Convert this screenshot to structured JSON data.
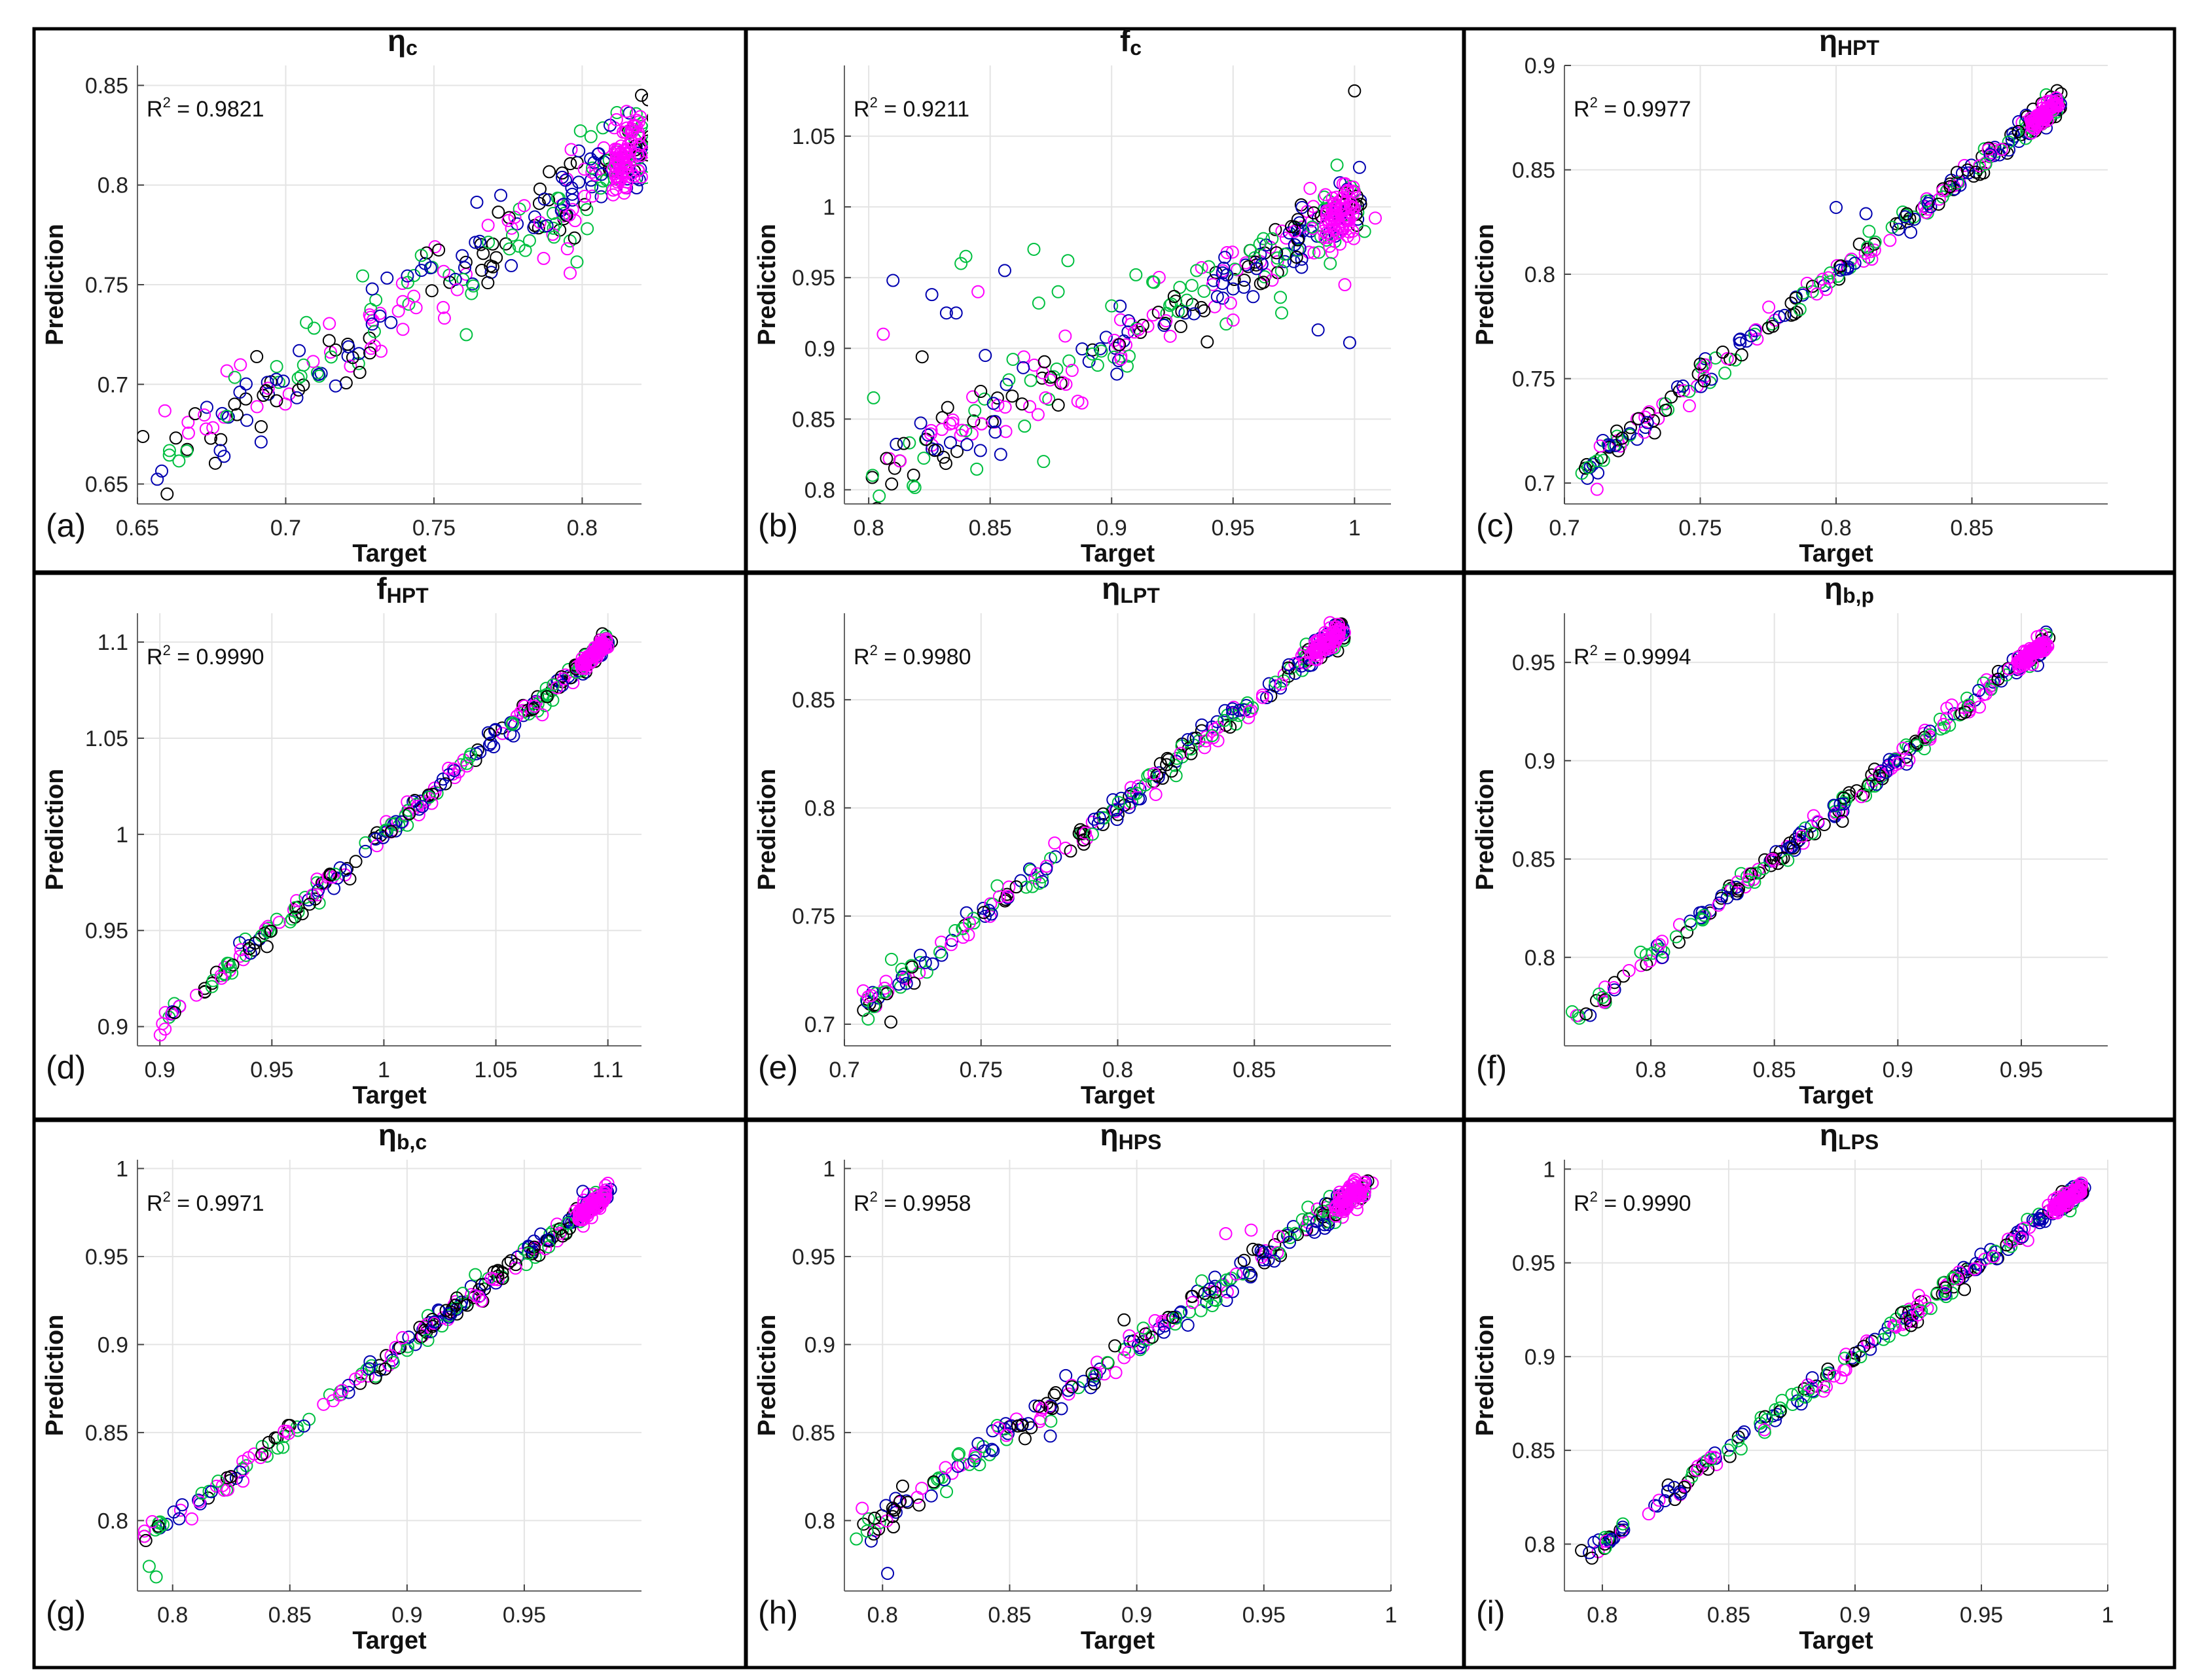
{
  "figure": {
    "xlabel": "Target",
    "ylabel": "Prediction",
    "series_colors": [
      "#0000b0",
      "#00c040",
      "#000000",
      "#ff00ff"
    ],
    "series_names": [
      "blue",
      "green",
      "black",
      "magenta"
    ]
  },
  "chart_data": [
    {
      "type": "scatter",
      "panel": "(a)",
      "title_symbol": "η",
      "title_sub": "c",
      "r2_prefix": "R",
      "r2_exp": "2",
      "r2_value": " = 0.9821",
      "xlabel": "Target",
      "ylabel": "Prediction",
      "xlim": [
        0.65,
        0.82
      ],
      "ylim": [
        0.64,
        0.86
      ],
      "xticks": [
        0.65,
        0.7,
        0.75,
        0.8
      ],
      "xtick_labels": [
        "0.65",
        "0.7",
        "0.75",
        "0.8"
      ],
      "yticks": [
        0.65,
        0.7,
        0.75,
        0.8,
        0.85
      ],
      "ytick_labels": [
        "0.65",
        "0.7",
        "0.75",
        "0.8",
        "0.85"
      ],
      "r2": 0.9821,
      "trend_range": [
        0.657,
        0.82
      ],
      "noise": 0.011,
      "count": 300,
      "outliers": [
        {
          "x": 0.66,
          "y": 0.645,
          "color": "#000000"
        },
        {
          "x": 0.82,
          "y": 0.845,
          "color": "#000000"
        },
        {
          "x": 0.795,
          "y": 0.768,
          "color": "#ff00ff"
        },
        {
          "x": 0.725,
          "y": 0.706,
          "color": "#000000"
        }
      ]
    },
    {
      "type": "scatter",
      "panel": "(b)",
      "title_symbol": "f",
      "title_sub": "c",
      "r2_prefix": "R",
      "r2_exp": "2",
      "r2_value": " = 0.9211",
      "xlabel": "Target",
      "ylabel": "Prediction",
      "xlim": [
        0.79,
        1.015
      ],
      "ylim": [
        0.79,
        1.1
      ],
      "xticks": [
        0.8,
        0.85,
        0.9,
        0.95,
        1
      ],
      "xtick_labels": [
        "0.8",
        "0.85",
        "0.9",
        "0.95",
        "1"
      ],
      "yticks": [
        0.8,
        0.85,
        0.9,
        0.95,
        1,
        1.05
      ],
      "ytick_labels": [
        "0.8",
        "0.85",
        "0.9",
        "0.95",
        "1",
        "1.05"
      ],
      "r2": 0.9211,
      "trend_range": [
        0.8,
        1.0
      ],
      "noise": 0.012,
      "count": 300,
      "outliers": [
        {
          "x": 0.802,
          "y": 0.865,
          "color": "#00c040"
        },
        {
          "x": 0.806,
          "y": 0.91,
          "color": "#ff00ff"
        },
        {
          "x": 0.81,
          "y": 0.948,
          "color": "#0000b0"
        },
        {
          "x": 0.822,
          "y": 0.894,
          "color": "#000000"
        },
        {
          "x": 0.826,
          "y": 0.938,
          "color": "#0000b0"
        },
        {
          "x": 0.832,
          "y": 0.925,
          "color": "#0000b0"
        },
        {
          "x": 0.836,
          "y": 0.925,
          "color": "#0000b0"
        },
        {
          "x": 0.838,
          "y": 0.96,
          "color": "#00c040"
        },
        {
          "x": 0.84,
          "y": 0.965,
          "color": "#00c040"
        },
        {
          "x": 0.845,
          "y": 0.94,
          "color": "#ff00ff"
        },
        {
          "x": 0.848,
          "y": 0.895,
          "color": "#0000b0"
        },
        {
          "x": 0.856,
          "y": 0.955,
          "color": "#0000b0"
        },
        {
          "x": 0.868,
          "y": 0.97,
          "color": "#00c040"
        },
        {
          "x": 0.87,
          "y": 0.932,
          "color": "#00c040"
        },
        {
          "x": 0.872,
          "y": 0.82,
          "color": "#00c040"
        },
        {
          "x": 0.878,
          "y": 0.94,
          "color": "#00c040"
        },
        {
          "x": 0.882,
          "y": 0.962,
          "color": "#00c040"
        },
        {
          "x": 0.9,
          "y": 0.93,
          "color": "#00c040"
        },
        {
          "x": 0.91,
          "y": 0.952,
          "color": "#00c040"
        },
        {
          "x": 0.935,
          "y": 0.955,
          "color": "#00c040"
        },
        {
          "x": 0.95,
          "y": 0.92,
          "color": "#ff00ff"
        },
        {
          "x": 0.97,
          "y": 0.925,
          "color": "#00c040"
        },
        {
          "x": 0.985,
          "y": 0.913,
          "color": "#0000b0"
        },
        {
          "x": 0.998,
          "y": 0.904,
          "color": "#0000b0"
        },
        {
          "x": 1.0,
          "y": 1.082,
          "color": "#000000"
        },
        {
          "x": 0.996,
          "y": 0.945,
          "color": "#ff00ff"
        },
        {
          "x": 0.99,
          "y": 0.96,
          "color": "#00c040"
        }
      ]
    },
    {
      "type": "scatter",
      "panel": "(c)",
      "title_symbol": "η",
      "title_sub": "HPT",
      "r2_prefix": "R",
      "r2_exp": "2",
      "r2_value": " = 0.9977",
      "xlabel": "Target",
      "ylabel": "Prediction",
      "xlim": [
        0.7,
        0.9
      ],
      "ylim": [
        0.69,
        0.9
      ],
      "xticks": [
        0.7,
        0.75,
        0.8,
        0.85
      ],
      "xtick_labels": [
        "0.7",
        "0.75",
        "0.8",
        "0.85"
      ],
      "yticks": [
        0.7,
        0.75,
        0.8,
        0.85,
        0.9
      ],
      "ytick_labels": [
        "0.7",
        "0.75",
        "0.8",
        "0.85",
        "0.9"
      ],
      "r2": 0.9977,
      "trend_range": [
        0.706,
        0.882
      ],
      "noise": 0.003,
      "count": 280,
      "outliers": [
        {
          "x": 0.712,
          "y": 0.697,
          "color": "#ff00ff"
        },
        {
          "x": 0.8,
          "y": 0.832,
          "color": "#0000b0"
        },
        {
          "x": 0.811,
          "y": 0.829,
          "color": "#0000b0"
        },
        {
          "x": 0.75,
          "y": 0.757,
          "color": "#000000"
        },
        {
          "x": 0.746,
          "y": 0.737,
          "color": "#ff00ff"
        }
      ]
    },
    {
      "type": "scatter",
      "panel": "(d)",
      "title_symbol": "f",
      "title_sub": "HPT",
      "r2_prefix": "R",
      "r2_exp": "2",
      "r2_value": " = 0.9990",
      "xlabel": "Target",
      "ylabel": "Prediction",
      "xlim": [
        0.89,
        1.115
      ],
      "ylim": [
        0.89,
        1.115
      ],
      "xticks": [
        0.9,
        0.95,
        1,
        1.05,
        1.1
      ],
      "xtick_labels": [
        "0.9",
        "0.95",
        "1",
        "1.05",
        "1.1"
      ],
      "yticks": [
        0.9,
        0.95,
        1,
        1.05,
        1.1
      ],
      "ytick_labels": [
        "0.9",
        "0.95",
        "1",
        "1.05",
        "1.1"
      ],
      "r2": 0.999,
      "trend_range": [
        0.9,
        1.1
      ],
      "noise": 0.0025,
      "count": 280,
      "outliers": []
    },
    {
      "type": "scatter",
      "panel": "(e)",
      "title_symbol": "η",
      "title_sub": "LPT",
      "r2_prefix": "R",
      "r2_exp": "2",
      "r2_value": " = 0.9980",
      "xlabel": "Target",
      "ylabel": "Prediction",
      "xlim": [
        0.7,
        0.9
      ],
      "ylim": [
        0.69,
        0.89
      ],
      "xticks": [
        0.7,
        0.75,
        0.8,
        0.85
      ],
      "xtick_labels": [
        "0.7",
        "0.75",
        "0.8",
        "0.85"
      ],
      "yticks": [
        0.7,
        0.75,
        0.8,
        0.85
      ],
      "ytick_labels": [
        "0.7",
        "0.75",
        "0.8",
        "0.85"
      ],
      "r2": 0.998,
      "trend_range": [
        0.705,
        0.882
      ],
      "noise": 0.003,
      "count": 280,
      "outliers": [
        {
          "x": 0.717,
          "y": 0.701,
          "color": "#000000"
        }
      ]
    },
    {
      "type": "scatter",
      "panel": "(f)",
      "title_symbol": "η",
      "title_sub": "b,p",
      "r2_prefix": "R",
      "r2_exp": "2",
      "r2_value": " = 0.9994",
      "xlabel": "Target",
      "ylabel": "Prediction",
      "xlim": [
        0.765,
        0.985
      ],
      "ylim": [
        0.755,
        0.975
      ],
      "xticks": [
        0.8,
        0.85,
        0.9,
        0.95
      ],
      "xtick_labels": [
        "0.8",
        "0.85",
        "0.9",
        "0.95"
      ],
      "yticks": [
        0.8,
        0.85,
        0.9,
        0.95
      ],
      "ytick_labels": [
        "0.8",
        "0.85",
        "0.9",
        "0.95"
      ],
      "r2": 0.9994,
      "trend_range": [
        0.768,
        0.96
      ],
      "noise": 0.0025,
      "count": 280,
      "outliers": []
    },
    {
      "type": "scatter",
      "panel": "(g)",
      "title_symbol": "η",
      "title_sub": "b,c",
      "r2_prefix": "R",
      "r2_exp": "2",
      "r2_value": " = 0.9971",
      "xlabel": "Target",
      "ylabel": "Prediction",
      "xlim": [
        0.785,
        1.0
      ],
      "ylim": [
        0.76,
        1.005
      ],
      "xticks": [
        0.8,
        0.85,
        0.9,
        0.95
      ],
      "xtick_labels": [
        "0.8",
        "0.85",
        "0.9",
        "0.95"
      ],
      "yticks": [
        0.8,
        0.85,
        0.9,
        0.95,
        1
      ],
      "ytick_labels": [
        "0.8",
        "0.85",
        "0.9",
        "0.95",
        "1"
      ],
      "r2": 0.9971,
      "trend_range": [
        0.788,
        0.985
      ],
      "noise": 0.003,
      "count": 280,
      "outliers": [
        {
          "x": 0.793,
          "y": 0.768,
          "color": "#00c040"
        },
        {
          "x": 0.79,
          "y": 0.774,
          "color": "#00c040"
        },
        {
          "x": 0.975,
          "y": 0.987,
          "color": "#0000b0"
        }
      ]
    },
    {
      "type": "scatter",
      "panel": "(h)",
      "title_symbol": "η",
      "title_sub": "HPS",
      "r2_prefix": "R",
      "r2_exp": "2",
      "r2_value": " = 0.9958",
      "xlabel": "Target",
      "ylabel": "Prediction",
      "xlim": [
        0.785,
        1.0
      ],
      "ylim": [
        0.76,
        1.005
      ],
      "xticks": [
        0.8,
        0.85,
        0.9,
        0.95,
        1
      ],
      "xtick_labels": [
        "0.8",
        "0.85",
        "0.9",
        "0.95",
        "1"
      ],
      "yticks": [
        0.8,
        0.85,
        0.9,
        0.95,
        1
      ],
      "ytick_labels": [
        "0.8",
        "0.85",
        "0.9",
        "0.95",
        "1"
      ],
      "r2": 0.9958,
      "trend_range": [
        0.79,
        0.99
      ],
      "noise": 0.004,
      "count": 280,
      "outliers": [
        {
          "x": 0.802,
          "y": 0.77,
          "color": "#0000b0"
        },
        {
          "x": 0.866,
          "y": 0.848,
          "color": "#0000b0"
        },
        {
          "x": 0.895,
          "y": 0.914,
          "color": "#000000"
        },
        {
          "x": 0.935,
          "y": 0.963,
          "color": "#ff00ff"
        },
        {
          "x": 0.945,
          "y": 0.965,
          "color": "#ff00ff"
        },
        {
          "x": 0.792,
          "y": 0.807,
          "color": "#ff00ff"
        }
      ]
    },
    {
      "type": "scatter",
      "panel": "(i)",
      "title_symbol": "η",
      "title_sub": "LPS",
      "r2_prefix": "R",
      "r2_exp": "2",
      "r2_value": " = 0.9990",
      "xlabel": "Target",
      "ylabel": "Prediction",
      "xlim": [
        0.785,
        1.0
      ],
      "ylim": [
        0.775,
        1.005
      ],
      "xticks": [
        0.8,
        0.85,
        0.9,
        0.95,
        1
      ],
      "xtick_labels": [
        "0.8",
        "0.85",
        "0.9",
        "0.95",
        "1"
      ],
      "yticks": [
        0.8,
        0.85,
        0.9,
        0.95,
        1
      ],
      "ytick_labels": [
        "0.8",
        "0.85",
        "0.9",
        "0.95",
        "1"
      ],
      "r2": 0.999,
      "trend_range": [
        0.793,
        0.99
      ],
      "noise": 0.0025,
      "count": 280,
      "outliers": []
    }
  ]
}
